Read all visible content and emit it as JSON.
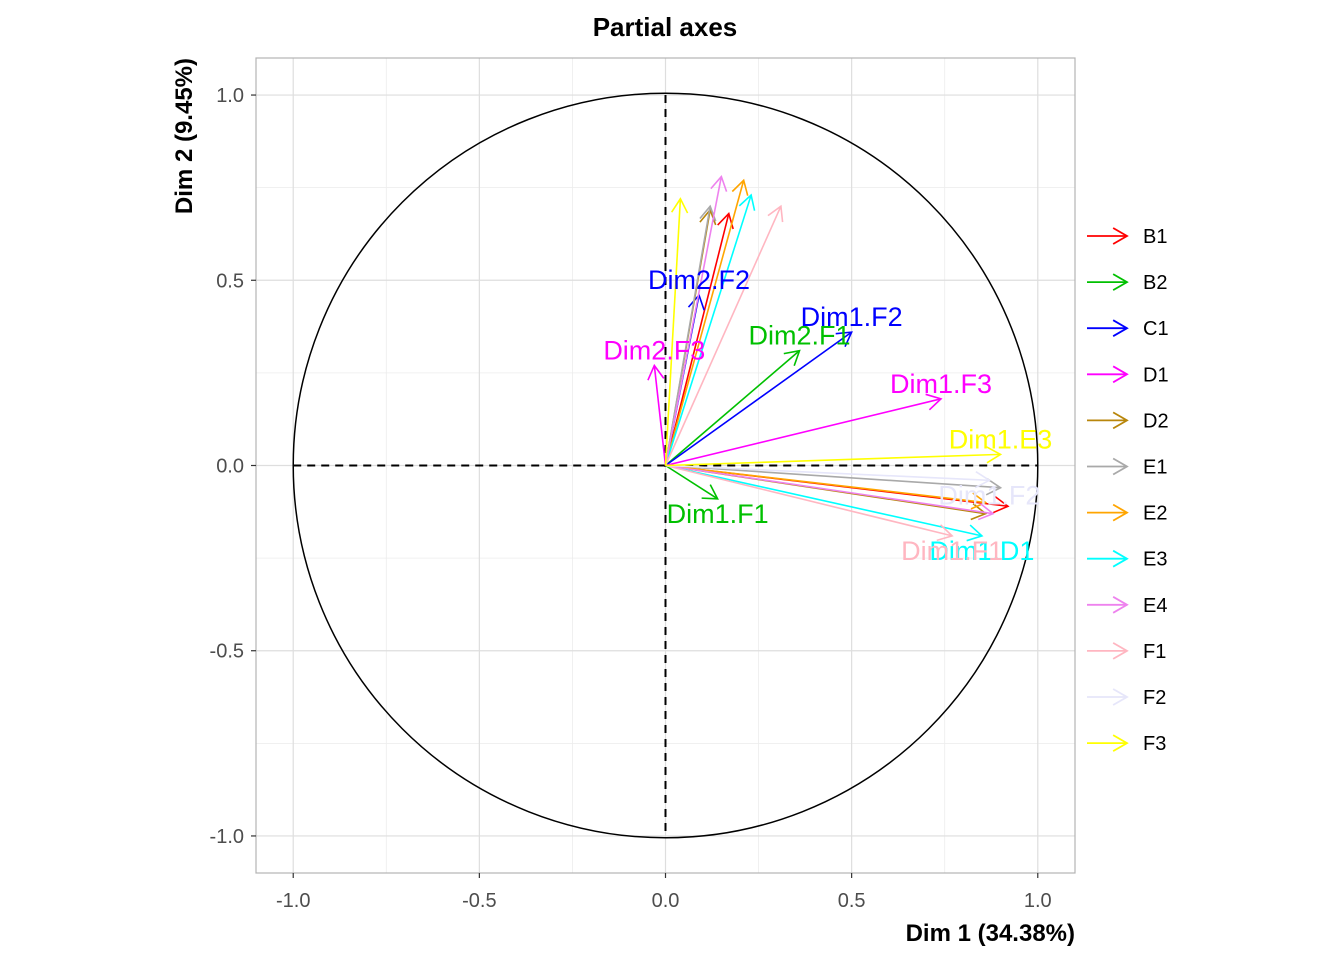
{
  "chart_data": {
    "type": "scatter",
    "title": "Partial axes",
    "xlabel": "Dim 1 (34.38%)",
    "ylabel": "Dim 2 (9.45%)",
    "xlim": [
      -1.1,
      1.1
    ],
    "ylim": [
      -1.1,
      1.1
    ],
    "x_ticks": [
      -1.0,
      -0.5,
      0.0,
      0.5,
      1.0
    ],
    "y_ticks": [
      -1.0,
      -0.5,
      0.0,
      0.5,
      1.0
    ],
    "x_tick_labels": [
      "-1.0",
      "-0.5",
      "0.0",
      "0.5",
      "1.0"
    ],
    "y_tick_labels": [
      "-1.0",
      "-0.5",
      "0.0",
      "0.5",
      "1.0"
    ],
    "grid": true,
    "unit_circle": true,
    "legend_position": "right",
    "series": [
      {
        "name": "B1",
        "color": "#ff0000",
        "vectors": [
          {
            "x": 0.92,
            "y": -0.11,
            "label": ""
          },
          {
            "x": 0.17,
            "y": 0.68,
            "label": ""
          }
        ]
      },
      {
        "name": "B2",
        "color": "#00c000",
        "vectors": [
          {
            "x": 0.14,
            "y": -0.09,
            "label": "Dim1.F1"
          },
          {
            "x": 0.36,
            "y": 0.31,
            "label": "Dim2.F1"
          }
        ]
      },
      {
        "name": "C1",
        "color": "#0000ff",
        "vectors": [
          {
            "x": 0.5,
            "y": 0.36,
            "label": "Dim1.F2"
          },
          {
            "x": 0.09,
            "y": 0.46,
            "label": "Dim2.F2"
          }
        ]
      },
      {
        "name": "D1",
        "color": "#ff00ff",
        "vectors": [
          {
            "x": 0.74,
            "y": 0.18,
            "label": "Dim1.F3"
          },
          {
            "x": -0.03,
            "y": 0.27,
            "label": "Dim2.F3"
          }
        ]
      },
      {
        "name": "D2",
        "color": "#b8860b",
        "vectors": [
          {
            "x": 0.86,
            "y": -0.13,
            "label": ""
          },
          {
            "x": 0.12,
            "y": 0.69,
            "label": ""
          }
        ]
      },
      {
        "name": "E1",
        "color": "#a9a9a9",
        "vectors": [
          {
            "x": 0.9,
            "y": -0.06,
            "label": ""
          },
          {
            "x": 0.12,
            "y": 0.7,
            "label": ""
          }
        ]
      },
      {
        "name": "E2",
        "color": "#ffa500",
        "vectors": [
          {
            "x": 0.86,
            "y": -0.1,
            "label": ""
          },
          {
            "x": 0.21,
            "y": 0.77,
            "label": ""
          }
        ]
      },
      {
        "name": "E3",
        "color": "#00ffff",
        "vectors": [
          {
            "x": 0.85,
            "y": -0.19,
            "label": "Dim1.D1"
          },
          {
            "x": 0.23,
            "y": 0.73,
            "label": ""
          }
        ]
      },
      {
        "name": "E4",
        "color": "#ee82ee",
        "vectors": [
          {
            "x": 0.88,
            "y": -0.13,
            "label": ""
          },
          {
            "x": 0.15,
            "y": 0.78,
            "label": ""
          }
        ]
      },
      {
        "name": "F1",
        "color": "#ffb6c1",
        "vectors": [
          {
            "x": 0.77,
            "y": -0.19,
            "label": "Dim1.F1"
          },
          {
            "x": 0.31,
            "y": 0.7,
            "label": ""
          }
        ]
      },
      {
        "name": "F2",
        "color": "#e6e6fa",
        "vectors": [
          {
            "x": 0.87,
            "y": -0.04,
            "label": "Dim1.F2"
          }
        ]
      },
      {
        "name": "F3",
        "color": "#ffff00",
        "vectors": [
          {
            "x": 0.9,
            "y": 0.03,
            "label": "Dim1.E3"
          },
          {
            "x": 0.04,
            "y": 0.72,
            "label": ""
          }
        ]
      }
    ]
  }
}
